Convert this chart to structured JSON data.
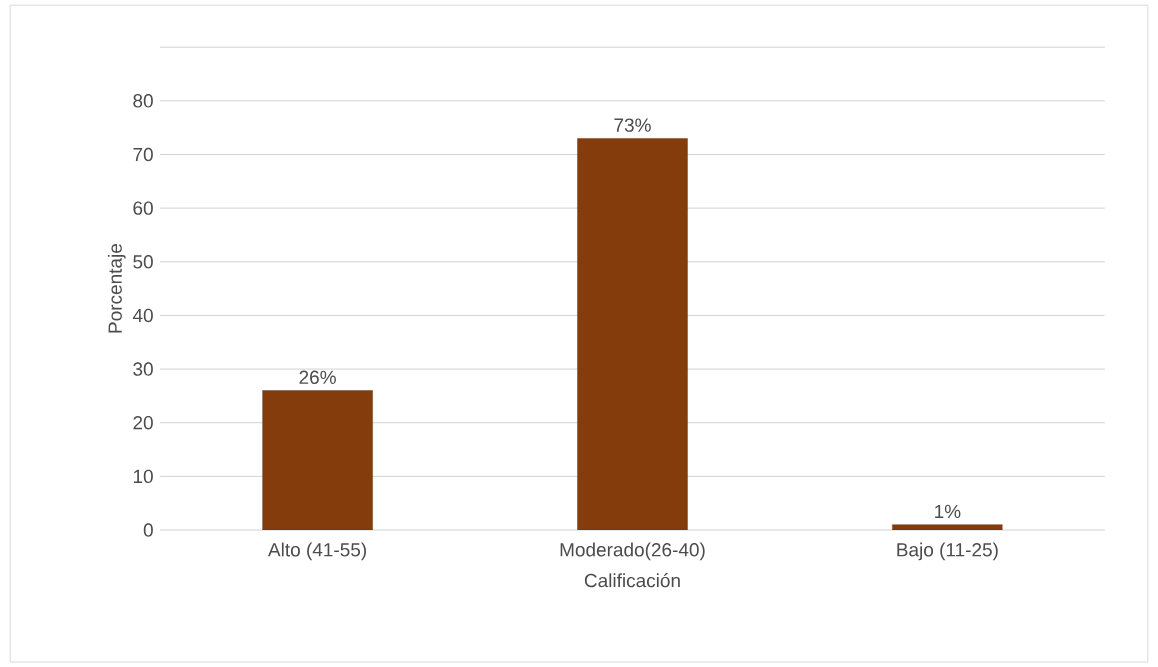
{
  "chart_data": {
    "type": "bar",
    "xlabel": "Calificación",
    "ylabel": "Porcentaje",
    "categories": [
      "Alto (41-55)",
      "Moderado(26-40)",
      "Bajo (11-25)"
    ],
    "values": [
      26,
      73,
      1
    ],
    "value_labels": [
      "26%",
      "73%",
      "1%"
    ],
    "color": "#843c0c",
    "ylim": [
      0,
      90
    ],
    "yticks": [
      0,
      10,
      20,
      30,
      40,
      50,
      60,
      70,
      80,
      {
        "value": 90,
        "label": null
      }
    ],
    "grid": "y"
  }
}
